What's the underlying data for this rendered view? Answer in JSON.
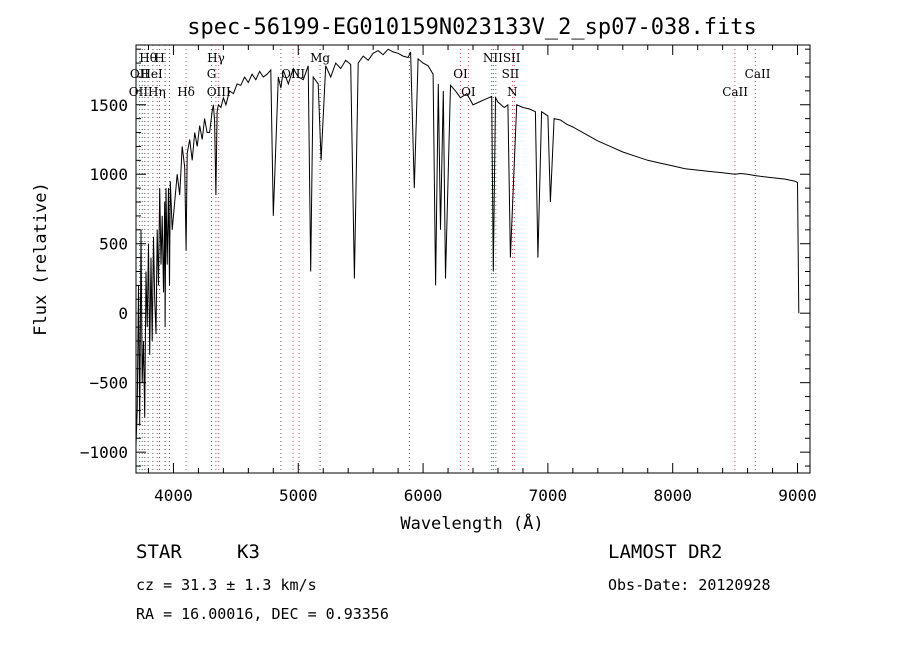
{
  "chart_data": {
    "type": "line",
    "title": "spec-56199-EG010159N023133V_2_sp07-038.fits",
    "xlabel": "Wavelength (Å)",
    "ylabel": "Flux (relative)",
    "xlim": [
      3700,
      9100
    ],
    "ylim": [
      -1150,
      1930
    ],
    "xticks": [
      4000,
      5000,
      6000,
      7000,
      8000,
      9000
    ],
    "yticks": [
      -1000,
      -500,
      0,
      500,
      1000,
      1500
    ],
    "series": [
      {
        "color": "#000000",
        "x": [
          3700,
          3710,
          3720,
          3730,
          3740,
          3750,
          3760,
          3770,
          3780,
          3790,
          3800,
          3810,
          3820,
          3830,
          3840,
          3850,
          3860,
          3870,
          3880,
          3890,
          3900,
          3910,
          3920,
          3930,
          3933,
          3940,
          3950,
          3960,
          3968,
          3975,
          3990,
          4010,
          4030,
          4050,
          4070,
          4090,
          4101,
          4110,
          4130,
          4150,
          4170,
          4190,
          4210,
          4230,
          4250,
          4270,
          4290,
          4310,
          4320,
          4330,
          4340,
          4350,
          4360,
          4380,
          4400,
          4420,
          4450,
          4480,
          4510,
          4540,
          4570,
          4600,
          4630,
          4660,
          4690,
          4720,
          4750,
          4780,
          4800,
          4840,
          4861,
          4880,
          4920,
          4960,
          5000,
          5040,
          5080,
          5100,
          5120,
          5160,
          5183,
          5220,
          5260,
          5300,
          5340,
          5380,
          5420,
          5450,
          5480,
          5520,
          5560,
          5600,
          5640,
          5680,
          5720,
          5760,
          5800,
          5840,
          5880,
          5900,
          5930,
          5960,
          6000,
          6040,
          6080,
          6100,
          6122,
          6140,
          6162,
          6180,
          6220,
          6260,
          6300,
          6350,
          6400,
          6450,
          6500,
          6550,
          6563,
          6580,
          6600,
          6650,
          6680,
          6700,
          6750,
          6800,
          6850,
          6900,
          6920,
          6950,
          7000,
          7020,
          7050,
          7100,
          7150,
          7200,
          7300,
          7400,
          7500,
          7600,
          7700,
          7800,
          7900,
          8000,
          8100,
          8200,
          8300,
          8400,
          8500,
          8542,
          8600,
          8662,
          8700,
          8800,
          8900,
          8980,
          9000,
          9010
        ],
        "y": [
          -950,
          -700,
          200,
          -800,
          600,
          -500,
          -200,
          -750,
          300,
          -100,
          500,
          -300,
          400,
          -200,
          550,
          100,
          -150,
          600,
          200,
          900,
          350,
          700,
          150,
          800,
          -100,
          900,
          350,
          900,
          200,
          950,
          600,
          800,
          1000,
          850,
          1200,
          1050,
          450,
          1150,
          1250,
          1100,
          1300,
          1200,
          1350,
          1250,
          1400,
          1300,
          1300,
          1450,
          1500,
          1380,
          850,
          1450,
          1500,
          1480,
          1550,
          1500,
          1600,
          1580,
          1650,
          1640,
          1700,
          1660,
          1720,
          1680,
          1740,
          1700,
          1720,
          1750,
          700,
          1700,
          1620,
          1750,
          1650,
          1760,
          1700,
          1680,
          1780,
          300,
          1700,
          1650,
          1100,
          1780,
          1700,
          1800,
          1760,
          1820,
          1790,
          250,
          1800,
          1850,
          1820,
          1870,
          1890,
          1860,
          1900,
          1880,
          1870,
          1850,
          1840,
          1880,
          900,
          1830,
          1800,
          1780,
          1720,
          200,
          1650,
          600,
          1600,
          250,
          1640,
          1600,
          1550,
          1580,
          1500,
          1520,
          1540,
          1560,
          300,
          1550,
          1520,
          1480,
          1500,
          400,
          1500,
          1480,
          1470,
          1450,
          400,
          1450,
          1420,
          800,
          1400,
          1390,
          1360,
          1340,
          1290,
          1240,
          1200,
          1160,
          1130,
          1100,
          1080,
          1060,
          1040,
          1030,
          1020,
          1010,
          1000,
          1005,
          1000,
          990,
          985,
          975,
          965,
          950,
          940,
          0
        ]
      }
    ],
    "line_labels": [
      {
        "text": "Hθ",
        "row": 1,
        "wave": 3797
      },
      {
        "text": "H",
        "row": 1,
        "wave": 3889
      },
      {
        "text": "Hγ",
        "row": 1,
        "wave": 4341
      },
      {
        "text": "Mg",
        "row": 1,
        "wave": 5175
      },
      {
        "text": "NIISII",
        "row": 1,
        "wave": 6630
      },
      {
        "text": "OII",
        "row": 2,
        "wave": 3728
      },
      {
        "text": "HeI",
        "row": 2,
        "wave": 3825
      },
      {
        "text": "G",
        "row": 2,
        "wave": 4305
      },
      {
        "text": "OIII",
        "row": 2,
        "wave": 4959
      },
      {
        "text": "OI",
        "row": 2,
        "wave": 6300
      },
      {
        "text": "SII",
        "row": 2,
        "wave": 6700
      },
      {
        "text": "CaII",
        "row": 2,
        "wave": 8680
      },
      {
        "text": "OIIHη",
        "row": 3,
        "wave": 3790
      },
      {
        "text": "Hδ",
        "row": 3,
        "wave": 4101
      },
      {
        "text": "OIII",
        "row": 3,
        "wave": 4363
      },
      {
        "text": "OI",
        "row": 3,
        "wave": 6363
      },
      {
        "text": "N",
        "row": 3,
        "wave": 6715
      },
      {
        "text": "CaII",
        "row": 3,
        "wave": 8500
      }
    ],
    "marker_lines": {
      "red": [
        3728,
        3869,
        4101,
        4340,
        4363,
        4959,
        5007,
        6300,
        6363,
        6548,
        6583,
        6716,
        6731,
        8498,
        8662
      ],
      "black": [
        3750,
        3770,
        3797,
        3835,
        3889,
        3933,
        3968,
        4305,
        4861,
        5175,
        5890,
        6563
      ]
    }
  },
  "info": {
    "class_label": "STAR",
    "subclass": "K3",
    "cz_text": "cz = 31.3 ± 1.3 km/s",
    "radec_text": "RA =  16.00016, DEC =    0.93356",
    "survey": "LAMOST DR2",
    "obs_date": "Obs-Date: 20120928"
  }
}
